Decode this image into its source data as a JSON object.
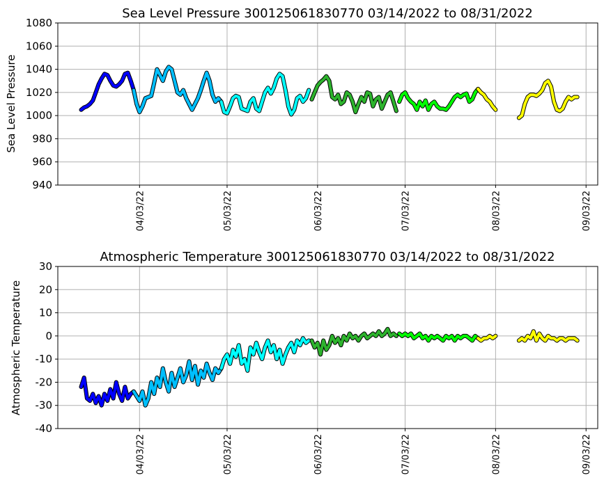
{
  "chart_data": [
    {
      "type": "line",
      "title": "Sea Level Pressure 300125061830770  03/14/2022 to 08/31/2022",
      "ylabel": "Sea Level Pressure",
      "xlabel": "",
      "ylim": [
        940,
        1080
      ],
      "yticks": [
        940,
        960,
        980,
        1000,
        1020,
        1040,
        1060,
        1080
      ],
      "xlim": [
        "2022-03-06",
        "2022-09-07"
      ],
      "xticks": [
        "04/03/22",
        "05/03/22",
        "06/03/22",
        "07/03/22",
        "08/03/22",
        "09/03/22"
      ],
      "xtick_dates": [
        "2022-04-03",
        "2022-05-03",
        "2022-06-03",
        "2022-07-03",
        "2022-08-03",
        "2022-09-03"
      ],
      "grid": true,
      "series": [
        {
          "color": "#0000ff",
          "x": [
            "2022-03-14",
            "2022-03-15",
            "2022-03-16",
            "2022-03-17",
            "2022-03-18",
            "2022-03-19",
            "2022-03-20",
            "2022-03-21",
            "2022-03-22",
            "2022-03-23",
            "2022-03-24",
            "2022-03-25",
            "2022-03-26",
            "2022-03-27",
            "2022-03-28",
            "2022-03-29",
            "2022-03-30",
            "2022-03-31",
            "2022-04-01"
          ],
          "y": [
            1005,
            1007,
            1008,
            1010,
            1013,
            1020,
            1027,
            1032,
            1036,
            1035,
            1030,
            1026,
            1025,
            1027,
            1030,
            1036,
            1037,
            1030,
            1022
          ]
        },
        {
          "color": "#00bfff",
          "x": [
            "2022-04-01",
            "2022-04-02",
            "2022-04-03",
            "2022-04-04",
            "2022-04-05",
            "2022-04-06",
            "2022-04-07",
            "2022-04-08",
            "2022-04-09",
            "2022-04-10",
            "2022-04-11",
            "2022-04-12",
            "2022-04-13",
            "2022-04-14",
            "2022-04-15",
            "2022-04-16",
            "2022-04-17",
            "2022-04-18",
            "2022-04-19",
            "2022-04-20",
            "2022-04-21",
            "2022-04-22",
            "2022-04-23",
            "2022-04-24",
            "2022-04-25",
            "2022-04-26",
            "2022-04-27",
            "2022-04-28",
            "2022-04-29",
            "2022-04-30",
            "2022-05-01"
          ],
          "y": [
            1022,
            1010,
            1003,
            1008,
            1015,
            1016,
            1017,
            1028,
            1040,
            1035,
            1030,
            1038,
            1042,
            1040,
            1030,
            1020,
            1018,
            1022,
            1015,
            1010,
            1005,
            1010,
            1015,
            1022,
            1030,
            1037,
            1030,
            1018,
            1012,
            1015,
            1012
          ]
        },
        {
          "color": "#00ffff",
          "x": [
            "2022-05-01",
            "2022-05-02",
            "2022-05-03",
            "2022-05-04",
            "2022-05-05",
            "2022-05-06",
            "2022-05-07",
            "2022-05-08",
            "2022-05-09",
            "2022-05-10",
            "2022-05-11",
            "2022-05-12",
            "2022-05-13",
            "2022-05-14",
            "2022-05-15",
            "2022-05-16",
            "2022-05-17",
            "2022-05-18",
            "2022-05-19",
            "2022-05-20",
            "2022-05-21",
            "2022-05-22",
            "2022-05-23",
            "2022-05-24",
            "2022-05-25",
            "2022-05-26",
            "2022-05-27",
            "2022-05-28",
            "2022-05-29",
            "2022-05-30",
            "2022-05-31"
          ],
          "y": [
            1012,
            1003,
            1002,
            1008,
            1015,
            1017,
            1016,
            1006,
            1005,
            1004,
            1012,
            1015,
            1006,
            1004,
            1012,
            1020,
            1024,
            1019,
            1024,
            1032,
            1036,
            1034,
            1022,
            1008,
            1001,
            1005,
            1015,
            1017,
            1012,
            1015,
            1022
          ]
        },
        {
          "color": "#2db32d",
          "x": [
            "2022-06-01",
            "2022-06-02",
            "2022-06-03",
            "2022-06-04",
            "2022-06-05",
            "2022-06-06",
            "2022-06-07",
            "2022-06-08",
            "2022-06-09",
            "2022-06-10",
            "2022-06-11",
            "2022-06-12",
            "2022-06-13",
            "2022-06-14",
            "2022-06-15",
            "2022-06-16",
            "2022-06-17",
            "2022-06-18",
            "2022-06-19",
            "2022-06-20",
            "2022-06-21",
            "2022-06-22",
            "2022-06-23",
            "2022-06-24",
            "2022-06-25",
            "2022-06-26",
            "2022-06-27",
            "2022-06-28",
            "2022-06-29",
            "2022-06-30"
          ],
          "y": [
            1014,
            1020,
            1026,
            1029,
            1031,
            1034,
            1030,
            1016,
            1014,
            1018,
            1010,
            1012,
            1020,
            1018,
            1012,
            1003,
            1010,
            1016,
            1012,
            1020,
            1019,
            1008,
            1014,
            1016,
            1006,
            1012,
            1018,
            1020,
            1012,
            1004
          ]
        },
        {
          "color": "#00ff00",
          "x": [
            "2022-07-01",
            "2022-07-02",
            "2022-07-03",
            "2022-07-04",
            "2022-07-05",
            "2022-07-06",
            "2022-07-07",
            "2022-07-08",
            "2022-07-09",
            "2022-07-10",
            "2022-07-11",
            "2022-07-12",
            "2022-07-13",
            "2022-07-14",
            "2022-07-15",
            "2022-07-16",
            "2022-07-17",
            "2022-07-18",
            "2022-07-19",
            "2022-07-20",
            "2022-07-21",
            "2022-07-22",
            "2022-07-23",
            "2022-07-24",
            "2022-07-25",
            "2022-07-26",
            "2022-07-27",
            "2022-07-28"
          ],
          "y": [
            1012,
            1018,
            1020,
            1015,
            1012,
            1010,
            1005,
            1012,
            1008,
            1013,
            1005,
            1010,
            1012,
            1008,
            1006,
            1006,
            1005,
            1008,
            1012,
            1016,
            1018,
            1016,
            1018,
            1019,
            1012,
            1014,
            1020,
            1023
          ]
        },
        {
          "color": "#ffff00",
          "x": [
            "2022-07-28",
            "2022-07-29",
            "2022-07-30",
            "2022-07-31",
            "2022-08-01",
            "2022-08-02",
            "2022-08-03"
          ],
          "y": [
            1023,
            1020,
            1018,
            1014,
            1012,
            1008,
            1005
          ]
        },
        {
          "color": "#ffff00",
          "x": [
            "2022-08-11",
            "2022-08-12",
            "2022-08-13",
            "2022-08-14",
            "2022-08-15",
            "2022-08-16",
            "2022-08-17",
            "2022-08-18",
            "2022-08-19",
            "2022-08-20",
            "2022-08-21",
            "2022-08-22",
            "2022-08-23",
            "2022-08-24",
            "2022-08-25",
            "2022-08-26",
            "2022-08-27",
            "2022-08-28",
            "2022-08-29",
            "2022-08-30",
            "2022-08-31"
          ],
          "y": [
            998,
            1000,
            1010,
            1016,
            1018,
            1018,
            1017,
            1019,
            1022,
            1028,
            1030,
            1025,
            1012,
            1005,
            1004,
            1006,
            1012,
            1016,
            1014,
            1016,
            1016
          ]
        }
      ]
    },
    {
      "type": "line",
      "title": "Atmospheric Temperature 300125061830770  03/14/2022 to 08/31/2022",
      "ylabel": "Atmospheric Temperature",
      "xlabel": "",
      "ylim": [
        -40,
        30
      ],
      "yticks": [
        -40,
        -30,
        -20,
        -10,
        0,
        10,
        20,
        30
      ],
      "xlim": [
        "2022-03-06",
        "2022-09-07"
      ],
      "xticks": [
        "04/03/22",
        "05/03/22",
        "06/03/22",
        "07/03/22",
        "08/03/22",
        "09/03/22"
      ],
      "xtick_dates": [
        "2022-04-03",
        "2022-05-03",
        "2022-06-03",
        "2022-07-03",
        "2022-08-03",
        "2022-09-03"
      ],
      "grid": true,
      "series": [
        {
          "color": "#0000ff",
          "x": [
            "2022-03-14",
            "2022-03-15",
            "2022-03-16",
            "2022-03-17",
            "2022-03-18",
            "2022-03-19",
            "2022-03-20",
            "2022-03-21",
            "2022-03-22",
            "2022-03-23",
            "2022-03-24",
            "2022-03-25",
            "2022-03-26",
            "2022-03-27",
            "2022-03-28",
            "2022-03-29",
            "2022-03-30",
            "2022-03-31",
            "2022-04-01"
          ],
          "y": [
            -22,
            -18,
            -27,
            -28,
            -25,
            -29,
            -26,
            -30,
            -25,
            -28,
            -23,
            -27,
            -20,
            -25,
            -28,
            -22,
            -27,
            -25,
            -24
          ]
        },
        {
          "color": "#00bfff",
          "x": [
            "2022-04-01",
            "2022-04-02",
            "2022-04-03",
            "2022-04-04",
            "2022-04-05",
            "2022-04-06",
            "2022-04-07",
            "2022-04-08",
            "2022-04-09",
            "2022-04-10",
            "2022-04-11",
            "2022-04-12",
            "2022-04-13",
            "2022-04-14",
            "2022-04-15",
            "2022-04-16",
            "2022-04-17",
            "2022-04-18",
            "2022-04-19",
            "2022-04-20",
            "2022-04-21",
            "2022-04-22",
            "2022-04-23",
            "2022-04-24",
            "2022-04-25",
            "2022-04-26",
            "2022-04-27",
            "2022-04-28",
            "2022-04-29",
            "2022-04-30",
            "2022-05-01"
          ],
          "y": [
            -24,
            -26,
            -28,
            -24,
            -30,
            -27,
            -20,
            -25,
            -18,
            -22,
            -14,
            -20,
            -24,
            -16,
            -22,
            -18,
            -14,
            -20,
            -17,
            -11,
            -19,
            -13,
            -21,
            -15,
            -18,
            -12,
            -16,
            -19,
            -14,
            -16,
            -14
          ]
        },
        {
          "color": "#00ffff",
          "x": [
            "2022-05-01",
            "2022-05-02",
            "2022-05-03",
            "2022-05-04",
            "2022-05-05",
            "2022-05-06",
            "2022-05-07",
            "2022-05-08",
            "2022-05-09",
            "2022-05-10",
            "2022-05-11",
            "2022-05-12",
            "2022-05-13",
            "2022-05-14",
            "2022-05-15",
            "2022-05-16",
            "2022-05-17",
            "2022-05-18",
            "2022-05-19",
            "2022-05-20",
            "2022-05-21",
            "2022-05-22",
            "2022-05-23",
            "2022-05-24",
            "2022-05-25",
            "2022-05-26",
            "2022-05-27",
            "2022-05-28",
            "2022-05-29",
            "2022-05-30",
            "2022-05-31"
          ],
          "y": [
            -14,
            -10,
            -8,
            -12,
            -6,
            -9,
            -4,
            -12,
            -10,
            -15,
            -5,
            -8,
            -3,
            -7,
            -10,
            -5,
            -2,
            -7,
            -4,
            -10,
            -6,
            -12,
            -8,
            -5,
            -3,
            -7,
            -2,
            -4,
            -1,
            -3,
            -2
          ]
        },
        {
          "color": "#2db32d",
          "x": [
            "2022-06-01",
            "2022-06-02",
            "2022-06-03",
            "2022-06-04",
            "2022-06-05",
            "2022-06-06",
            "2022-06-07",
            "2022-06-08",
            "2022-06-09",
            "2022-06-10",
            "2022-06-11",
            "2022-06-12",
            "2022-06-13",
            "2022-06-14",
            "2022-06-15",
            "2022-06-16",
            "2022-06-17",
            "2022-06-18",
            "2022-06-19",
            "2022-06-20",
            "2022-06-21",
            "2022-06-22",
            "2022-06-23",
            "2022-06-24",
            "2022-06-25",
            "2022-06-26",
            "2022-06-27",
            "2022-06-28",
            "2022-06-29",
            "2022-06-30"
          ],
          "y": [
            -2,
            -5,
            -3,
            -8,
            -2,
            -6,
            -4,
            0,
            -3,
            -1,
            -4,
            0,
            -2,
            1,
            -1,
            0,
            -2,
            0,
            1,
            -1,
            0,
            1,
            0,
            2,
            0,
            1,
            3,
            0,
            1,
            0
          ]
        },
        {
          "color": "#00ff00",
          "x": [
            "2022-07-01",
            "2022-07-02",
            "2022-07-03",
            "2022-07-04",
            "2022-07-05",
            "2022-07-06",
            "2022-07-07",
            "2022-07-08",
            "2022-07-09",
            "2022-07-10",
            "2022-07-11",
            "2022-07-12",
            "2022-07-13",
            "2022-07-14",
            "2022-07-15",
            "2022-07-16",
            "2022-07-17",
            "2022-07-18",
            "2022-07-19",
            "2022-07-20",
            "2022-07-21",
            "2022-07-22",
            "2022-07-23",
            "2022-07-24",
            "2022-07-25",
            "2022-07-26",
            "2022-07-27",
            "2022-07-28"
          ],
          "y": [
            1,
            0,
            1,
            0,
            1,
            -1,
            0,
            1,
            -1,
            0,
            -2,
            0,
            -1,
            0,
            -1,
            -2,
            0,
            -1,
            0,
            -2,
            0,
            -1,
            0,
            0,
            -1,
            -2,
            0,
            -1
          ]
        },
        {
          "color": "#ffff00",
          "x": [
            "2022-07-28",
            "2022-07-29",
            "2022-07-30",
            "2022-07-31",
            "2022-08-01",
            "2022-08-02",
            "2022-08-03"
          ],
          "y": [
            -1,
            -2,
            -1,
            -1,
            0,
            -1,
            0
          ]
        },
        {
          "color": "#ffff00",
          "x": [
            "2022-08-11",
            "2022-08-12",
            "2022-08-13",
            "2022-08-14",
            "2022-08-15",
            "2022-08-16",
            "2022-08-17",
            "2022-08-18",
            "2022-08-19",
            "2022-08-20",
            "2022-08-21",
            "2022-08-22",
            "2022-08-23",
            "2022-08-24",
            "2022-08-25",
            "2022-08-26",
            "2022-08-27",
            "2022-08-28",
            "2022-08-29",
            "2022-08-30",
            "2022-08-31"
          ],
          "y": [
            -2,
            -1,
            -2,
            0,
            -1,
            2,
            -2,
            1,
            -1,
            -2,
            0,
            -1,
            -1,
            -2,
            -1,
            -1,
            -2,
            -1,
            -1,
            -1,
            -2
          ]
        }
      ]
    }
  ]
}
